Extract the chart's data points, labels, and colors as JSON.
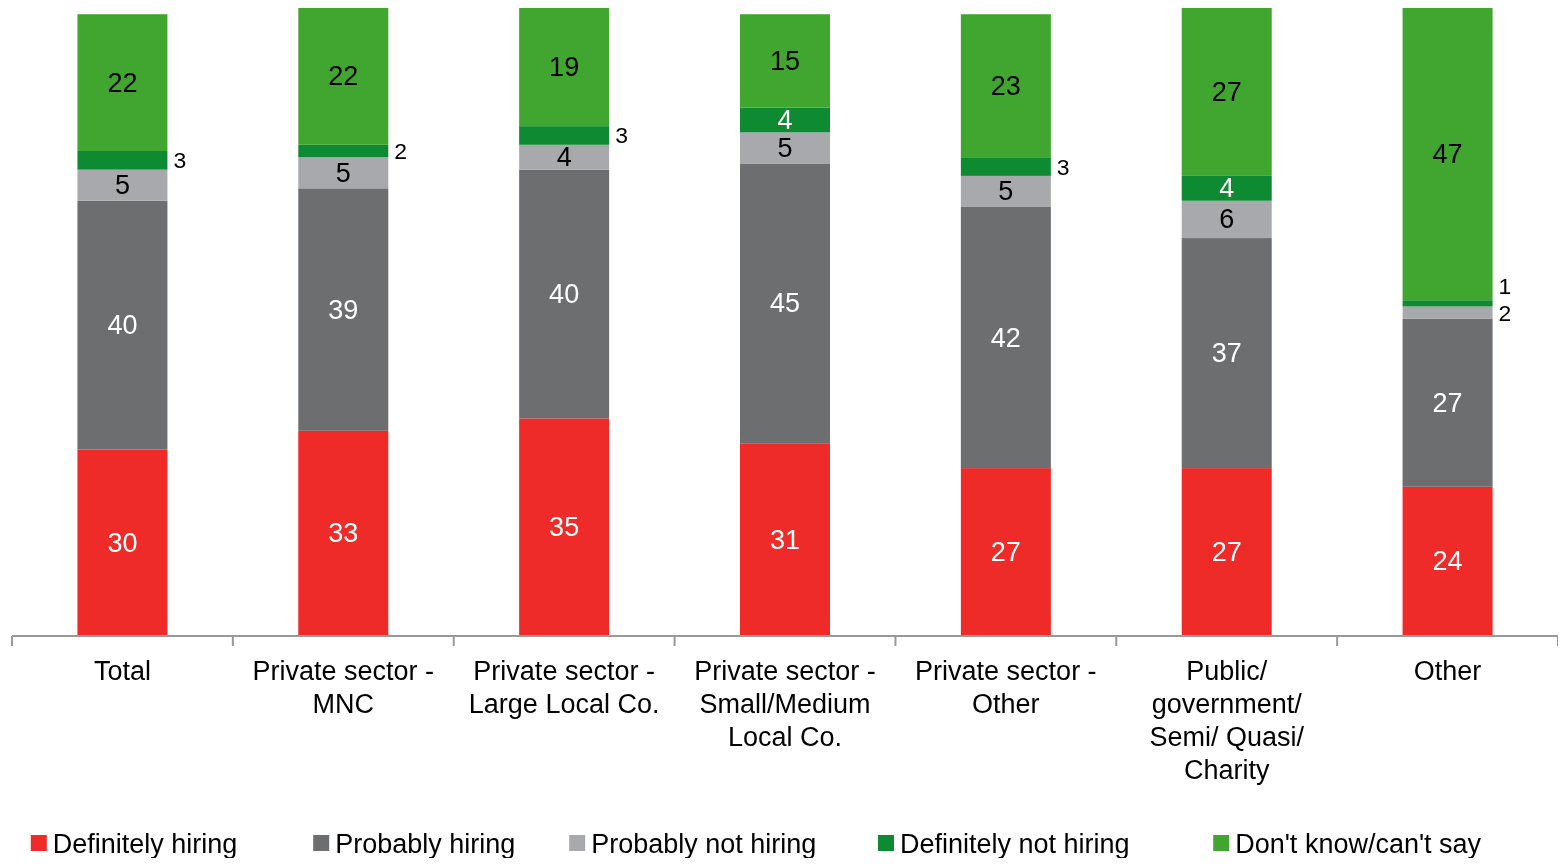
{
  "chart_data": {
    "type": "bar",
    "stacked": true,
    "data_labels": true,
    "legend": "bottom",
    "ylim": [
      0,
      101
    ],
    "categories": [
      "Total",
      "Private sector - MNC",
      "Private sector - Large Local Co.",
      "Private sector - Small/Medium Local Co.",
      "Private sector - Other",
      "Public/ government/ Semi/ Quasi/ Charity",
      "Other"
    ],
    "series": [
      {
        "name": "Definitely hiring",
        "color": "#ee2b29",
        "values": [
          30,
          33,
          35,
          31,
          27,
          27,
          24
        ]
      },
      {
        "name": "Probably hiring",
        "color": "#6d6e70",
        "values": [
          40,
          39,
          40,
          45,
          42,
          37,
          27
        ]
      },
      {
        "name": "Probably not hiring",
        "color": "#a7a9ac",
        "values": [
          5,
          5,
          4,
          5,
          5,
          6,
          2
        ]
      },
      {
        "name": "Definitely not hiring",
        "color": "#0e8a33",
        "values": [
          3,
          2,
          3,
          4,
          3,
          4,
          1
        ]
      },
      {
        "name": "Don't know/can't say",
        "color": "#41a62f",
        "values": [
          22,
          22,
          19,
          15,
          23,
          27,
          47
        ]
      }
    ]
  }
}
